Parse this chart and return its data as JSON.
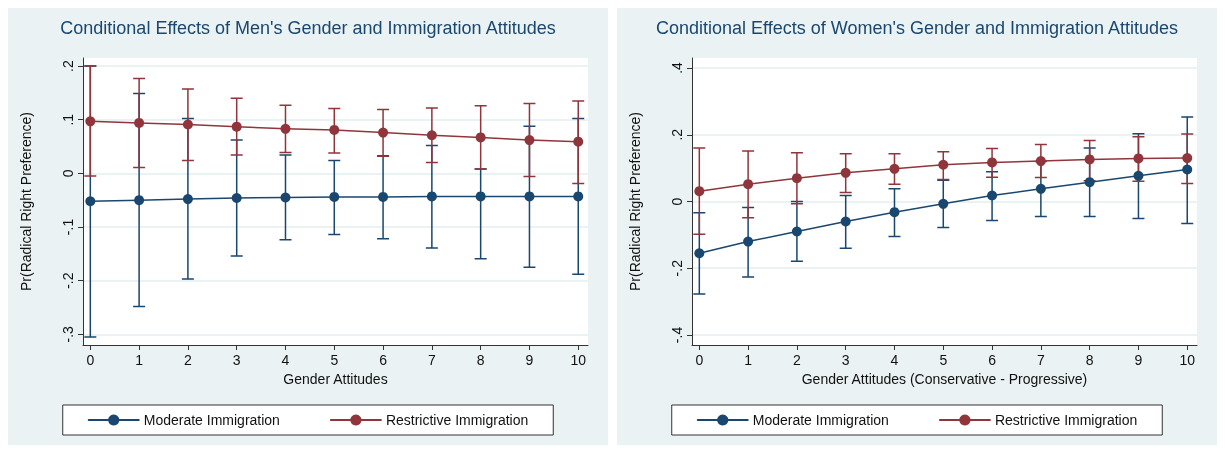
{
  "chart_data": [
    {
      "type": "line",
      "title": "Conditional Effects of Men's Gender and Immigration Attitudes",
      "xlabel": "Gender Attitudes",
      "ylabel": "Pr(Radical Right Preference)",
      "x": [
        0,
        1,
        2,
        3,
        4,
        5,
        6,
        7,
        8,
        9,
        10
      ],
      "xlim": [
        -0.15,
        10.2
      ],
      "xticks": [
        0,
        1,
        2,
        3,
        4,
        5,
        6,
        7,
        8,
        9,
        10
      ],
      "ylim": [
        -0.32,
        0.215
      ],
      "yticks": [
        {
          "value": -0.3,
          "label": "-.3"
        },
        {
          "value": -0.2,
          "label": "-.2"
        },
        {
          "value": -0.1,
          "label": "-.1"
        },
        {
          "value": 0,
          "label": "0"
        },
        {
          "value": 0.1,
          "label": ".1"
        },
        {
          "value": 0.2,
          "label": ".2"
        }
      ],
      "grid": "y",
      "legend": "bottom",
      "marker": "circle",
      "line_style": "solid",
      "series": [
        {
          "name": "Moderate Immigration",
          "color": "#1a476f",
          "values": [
            -0.052,
            -0.05,
            -0.048,
            -0.046,
            -0.045,
            -0.044,
            -0.044,
            -0.043,
            -0.043,
            -0.043,
            -0.043
          ],
          "errors": [
            [
              -0.305,
              0.2
            ],
            [
              -0.248,
              0.149
            ],
            [
              -0.197,
              0.102
            ],
            [
              -0.154,
              0.062
            ],
            [
              -0.124,
              0.034
            ],
            [
              -0.114,
              0.024
            ],
            [
              -0.122,
              0.033
            ],
            [
              -0.139,
              0.052
            ],
            [
              -0.159,
              0.008
            ],
            [
              -0.175,
              0.088
            ],
            [
              -0.188,
              0.102
            ]
          ]
        },
        {
          "name": "Restrictive Immigration",
          "color": "#90353b",
          "values": [
            0.097,
            0.094,
            0.091,
            0.087,
            0.083,
            0.081,
            0.076,
            0.071,
            0.067,
            0.062,
            0.059
          ],
          "errors": [
            [
              -0.005,
              0.2
            ],
            [
              0.011,
              0.177
            ],
            [
              0.024,
              0.157
            ],
            [
              0.034,
              0.14
            ],
            [
              0.039,
              0.127
            ],
            [
              0.038,
              0.121
            ],
            [
              0.032,
              0.119
            ],
            [
              0.02,
              0.122
            ],
            [
              0.008,
              0.126
            ],
            [
              -0.006,
              0.13
            ],
            [
              -0.019,
              0.135
            ]
          ]
        }
      ]
    },
    {
      "type": "line",
      "title": "Conditional Effects of Women's Gender and Immigration Attitudes",
      "xlabel": "Gender Attitudes (Conservative - Progressive)",
      "ylabel": "Pr(Radical Right Preference)",
      "x": [
        0,
        1,
        2,
        3,
        4,
        5,
        6,
        7,
        8,
        9,
        10
      ],
      "xlim": [
        -0.15,
        10.2
      ],
      "xticks": [
        0,
        1,
        2,
        3,
        4,
        5,
        6,
        7,
        8,
        9,
        10
      ],
      "ylim": [
        -0.43,
        0.43
      ],
      "yticks": [
        {
          "value": -0.4,
          "label": "-.4"
        },
        {
          "value": -0.2,
          "label": "-.2"
        },
        {
          "value": 0,
          "label": "0"
        },
        {
          "value": 0.2,
          "label": ".2"
        },
        {
          "value": 0.4,
          "label": ".4"
        }
      ],
      "grid": "y",
      "legend": "bottom",
      "marker": "circle",
      "line_style": "solid",
      "series": [
        {
          "name": "Moderate Immigration",
          "color": "#1a476f",
          "values": [
            -0.155,
            -0.12,
            -0.09,
            -0.06,
            -0.032,
            -0.007,
            0.018,
            0.038,
            0.058,
            0.077,
            0.096
          ],
          "errors": [
            [
              -0.277,
              -0.034
            ],
            [
              -0.226,
              -0.018
            ],
            [
              -0.179,
              0
            ],
            [
              -0.14,
              0.018
            ],
            [
              -0.105,
              0.038
            ],
            [
              -0.078,
              0.064
            ],
            [
              -0.057,
              0.089
            ],
            [
              -0.045,
              0.12
            ],
            [
              -0.045,
              0.16
            ],
            [
              -0.051,
              0.203
            ],
            [
              -0.066,
              0.253
            ]
          ]
        },
        {
          "name": "Restrictive Immigration",
          "color": "#90353b",
          "values": [
            0.031,
            0.052,
            0.07,
            0.086,
            0.098,
            0.11,
            0.117,
            0.121,
            0.126,
            0.129,
            0.13
          ],
          "errors": [
            [
              -0.098,
              0.16
            ],
            [
              -0.049,
              0.151
            ],
            [
              -0.007,
              0.146
            ],
            [
              0.027,
              0.143
            ],
            [
              0.052,
              0.143
            ],
            [
              0.066,
              0.149
            ],
            [
              0.073,
              0.159
            ],
            [
              0.072,
              0.171
            ],
            [
              0.062,
              0.183
            ],
            [
              0.061,
              0.194
            ],
            [
              0.054,
              0.202
            ]
          ]
        }
      ]
    }
  ]
}
